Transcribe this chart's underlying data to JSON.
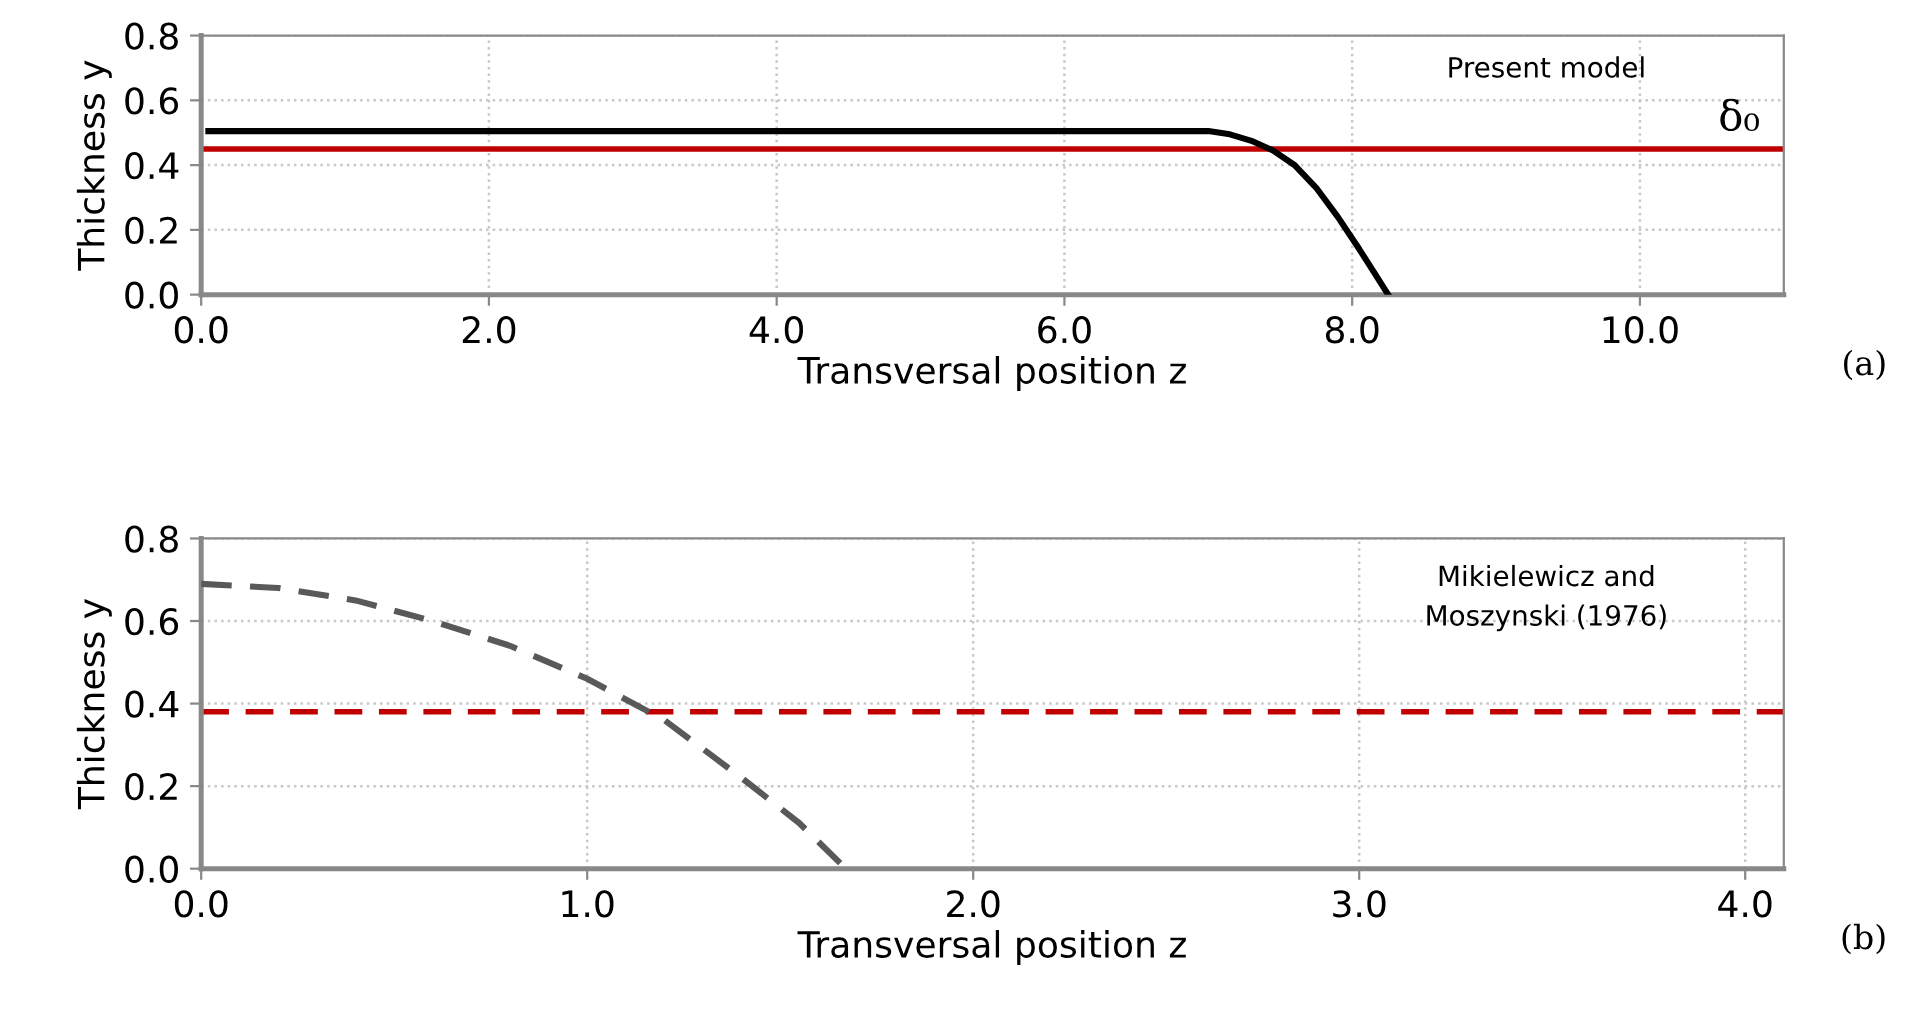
{
  "chart_data": [
    {
      "type": "line",
      "xlabel": "Transversal position z",
      "ylabel": "Thickness y",
      "xlim": [
        0,
        11
      ],
      "xticks": [
        {
          "value": 0,
          "label": "0.0"
        },
        {
          "value": 2,
          "label": "2.0"
        },
        {
          "value": 4,
          "label": "4.0"
        },
        {
          "value": 6,
          "label": "6.0"
        },
        {
          "value": 8,
          "label": "8.0"
        },
        {
          "value": 10,
          "label": "10.0"
        }
      ],
      "ylim": [
        0,
        0.8
      ],
      "yticks": [
        {
          "value": 0,
          "label": "0.0"
        },
        {
          "value": 0.2,
          "label": "0.2"
        },
        {
          "value": 0.4,
          "label": "0.4"
        },
        {
          "value": 0.6,
          "label": "0.6"
        },
        {
          "value": 0.8,
          "label": "0.8"
        }
      ],
      "grid": true,
      "legend": false,
      "marker": "none",
      "series": [
        {
          "color": "#000000",
          "line_style": "solid",
          "x": [
            0.05,
            2,
            4,
            6,
            7.0,
            7.15,
            7.3,
            7.45,
            7.6,
            7.75,
            7.9,
            8.05,
            8.15,
            8.25
          ],
          "values": [
            0.505,
            0.505,
            0.505,
            0.505,
            0.505,
            0.495,
            0.475,
            0.445,
            0.4,
            0.33,
            0.24,
            0.14,
            0.07,
            0.0
          ]
        }
      ],
      "ref_lines": [
        {
          "axis": "y",
          "value": 0.45,
          "label": "δ₀",
          "color": "#c00000",
          "line_style": "solid"
        }
      ],
      "annotations": [
        "Present model",
        "(a)"
      ]
    },
    {
      "type": "line",
      "xlabel": "Transversal position z",
      "ylabel": "Thickness y",
      "xlim": [
        0,
        4.1
      ],
      "xticks": [
        {
          "value": 0,
          "label": "0.0"
        },
        {
          "value": 1,
          "label": "1.0"
        },
        {
          "value": 2,
          "label": "2.0"
        },
        {
          "value": 3,
          "label": "3.0"
        },
        {
          "value": 4,
          "label": "4.0"
        }
      ],
      "ylim": [
        0,
        0.8
      ],
      "yticks": [
        {
          "value": 0,
          "label": "0.0"
        },
        {
          "value": 0.2,
          "label": "0.2"
        },
        {
          "value": 0.4,
          "label": "0.4"
        },
        {
          "value": 0.6,
          "label": "0.6"
        },
        {
          "value": 0.8,
          "label": "0.8"
        }
      ],
      "grid": true,
      "legend": false,
      "marker": "none",
      "series": [
        {
          "color": "#595959",
          "line_style": "dashed",
          "x": [
            0,
            0.2,
            0.4,
            0.6,
            0.8,
            1.0,
            1.2,
            1.4,
            1.55,
            1.67
          ],
          "values": [
            0.69,
            0.68,
            0.65,
            0.6,
            0.54,
            0.46,
            0.36,
            0.22,
            0.11,
            0.0
          ]
        }
      ],
      "ref_lines": [
        {
          "axis": "y",
          "value": 0.38,
          "color": "#c00000",
          "line_style": "dashed"
        }
      ],
      "annotations": [
        "Mikielewicz and\nMoszynski (1976)",
        "(b)"
      ]
    }
  ]
}
